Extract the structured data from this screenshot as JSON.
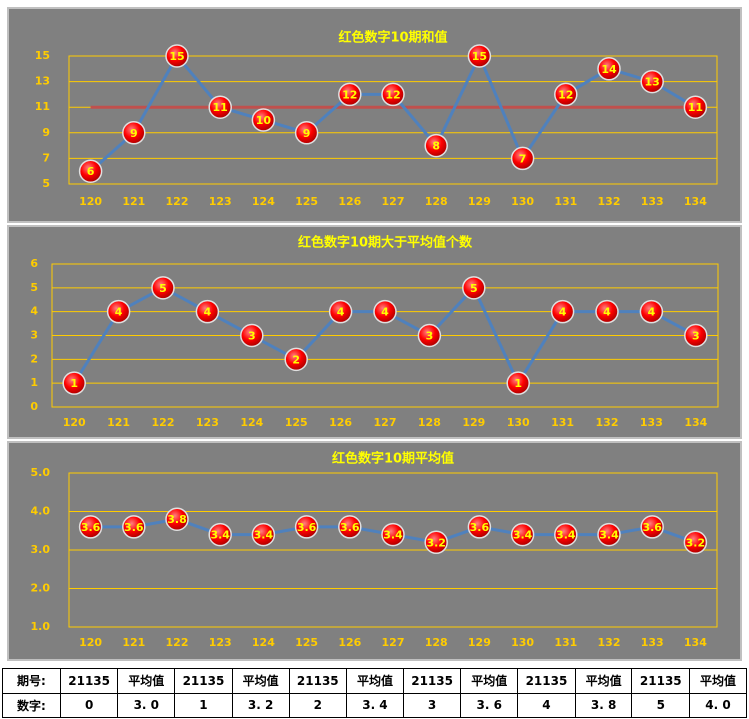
{
  "chart_data": [
    {
      "type": "line",
      "title": "红色数字10期和值",
      "categories": [
        "120",
        "121",
        "122",
        "123",
        "124",
        "125",
        "126",
        "127",
        "128",
        "129",
        "130",
        "131",
        "132",
        "133",
        "134"
      ],
      "series": [
        {
          "color": "#4f81bd",
          "marker_color": "#ff0000",
          "values": [
            6,
            9,
            15,
            11,
            10,
            9,
            12,
            12,
            8,
            15,
            7,
            12,
            14,
            13,
            11
          ]
        }
      ],
      "ylim": [
        5,
        15
      ],
      "yticks": [
        5,
        7,
        9,
        11,
        13,
        15
      ],
      "grid": true,
      "grid_color": "#ffcc00",
      "hline": {
        "value": 11,
        "color": "#c0504d"
      }
    },
    {
      "type": "line",
      "title": "红色数字10期大于平均值个数",
      "categories": [
        "120",
        "121",
        "122",
        "123",
        "124",
        "125",
        "126",
        "127",
        "128",
        "129",
        "130",
        "131",
        "132",
        "133",
        "134"
      ],
      "series": [
        {
          "color": "#4f81bd",
          "marker_color": "#ff0000",
          "values": [
            1,
            4,
            5,
            4,
            3,
            2,
            4,
            4,
            3,
            5,
            1,
            4,
            4,
            4,
            3
          ]
        }
      ],
      "ylim": [
        0,
        6
      ],
      "yticks": [
        0,
        1,
        2,
        3,
        4,
        5,
        6
      ],
      "grid": true,
      "grid_color": "#ffcc00"
    },
    {
      "type": "line",
      "title": "红色数字10期平均值",
      "categories": [
        "120",
        "121",
        "122",
        "123",
        "124",
        "125",
        "126",
        "127",
        "128",
        "129",
        "130",
        "131",
        "132",
        "133",
        "134"
      ],
      "series": [
        {
          "color": "#4f81bd",
          "marker_color": "#ff0000",
          "values": [
            3.6,
            3.6,
            3.8,
            3.4,
            3.4,
            3.6,
            3.6,
            3.4,
            3.2,
            3.6,
            3.4,
            3.4,
            3.4,
            3.6,
            3.2
          ]
        }
      ],
      "ylim": [
        1,
        5
      ],
      "yticks": [
        {
          "value": 1,
          "label": "1.0"
        },
        {
          "value": 2,
          "label": "2.0"
        },
        {
          "value": 3,
          "label": "3.0"
        },
        {
          "value": 4,
          "label": "4.0"
        },
        {
          "value": 5,
          "label": "5.0"
        }
      ],
      "grid": true,
      "grid_color": "#ffcc00"
    }
  ],
  "table": {
    "rows": [
      [
        "期号:",
        "21135",
        "平均值",
        "21135",
        "平均值",
        "21135",
        "平均值",
        "21135",
        "平均值",
        "21135",
        "平均值",
        "21135",
        "平均值"
      ],
      [
        "数字:",
        "0",
        "3. 0",
        "1",
        "3. 2",
        "2",
        "3. 4",
        "3",
        "3. 6",
        "4",
        "3. 8",
        "5",
        "4. 0"
      ]
    ]
  }
}
